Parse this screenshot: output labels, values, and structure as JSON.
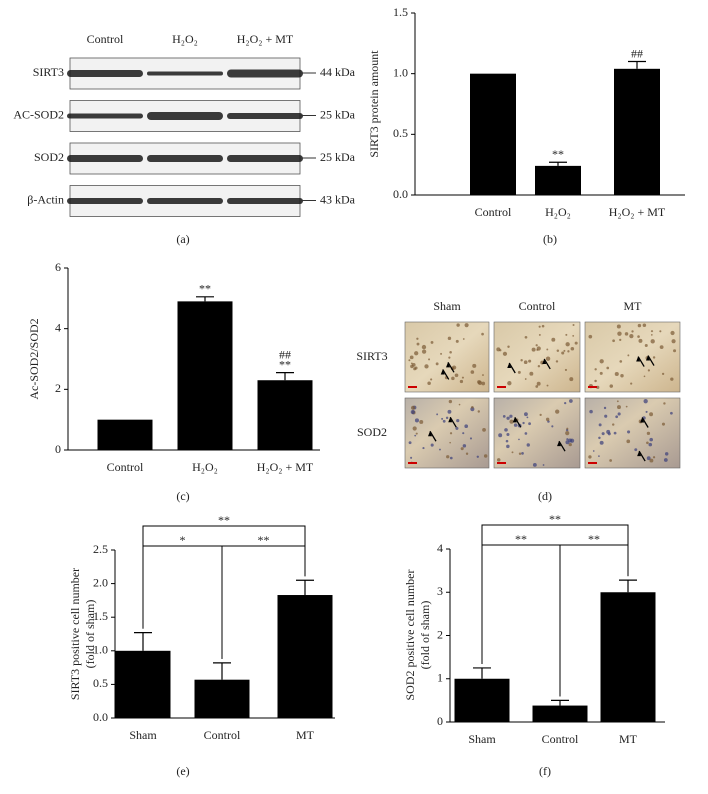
{
  "blot": {
    "panel_label": "(a)",
    "lanes": [
      "Control",
      "H₂O₂",
      "H₂O₂ + MT"
    ],
    "rows": [
      {
        "name": "SIRT3",
        "size": "44 kDa"
      },
      {
        "name": "AC-SOD2",
        "size": "25 kDa"
      },
      {
        "name": "SOD2",
        "size": "25 kDa"
      },
      {
        "name": "β-Actin",
        "size": "43 kDa"
      }
    ]
  },
  "histology": {
    "panel_label": "(d)",
    "columns": [
      "Sham",
      "Control",
      "MT"
    ],
    "rows": [
      "SIRT3",
      "SOD2"
    ]
  },
  "chart_data": [
    {
      "type": "bar",
      "panel_label": "(b)",
      "y_label": [
        "SIRT3 protein amount"
      ],
      "categories": [
        "Control",
        "H₂O₂",
        "H₂O₂ + MT"
      ],
      "values": [
        1.0,
        0.24,
        1.04
      ],
      "errors": [
        null,
        0.03,
        0.06
      ],
      "significance": [
        null,
        [
          "**"
        ],
        [
          "##"
        ]
      ],
      "color": "#000000",
      "ylim": [
        0,
        1.5
      ],
      "yticks": [
        {
          "value": 0,
          "label": "0.0"
        },
        0.5,
        {
          "value": 1,
          "label": "1.0"
        },
        1.5
      ]
    },
    {
      "type": "bar",
      "panel_label": "(c)",
      "y_label": [
        "Ac-SOD2/SOD2"
      ],
      "categories": [
        "Control",
        "H₂O₂",
        "H₂O₂ + MT"
      ],
      "values": [
        1.0,
        4.9,
        2.3
      ],
      "errors": [
        null,
        0.15,
        0.25
      ],
      "significance": [
        null,
        [
          "**"
        ],
        [
          "##",
          "**"
        ]
      ],
      "color": "#000000",
      "ylim": [
        0,
        6
      ],
      "yticks": [
        0,
        2,
        4,
        6
      ]
    },
    {
      "type": "bar",
      "panel_label": "(e)",
      "y_label": [
        "SIRT3 positive cell number",
        "(fold of sham)"
      ],
      "categories": [
        "Sham",
        "Control",
        "MT"
      ],
      "values": [
        1.0,
        0.57,
        1.83
      ],
      "errors": [
        0.27,
        0.25,
        0.22
      ],
      "comparisons": [
        {
          "groups": [
            "Sham",
            "Control"
          ],
          "label": "*"
        },
        {
          "groups": [
            "Control",
            "MT"
          ],
          "label": "**"
        },
        {
          "groups": [
            "Sham",
            "MT"
          ],
          "label": "**"
        }
      ],
      "color": "#000000",
      "ylim": [
        0,
        2.5
      ],
      "yticks": [
        {
          "value": 0,
          "label": "0.0"
        },
        0.5,
        {
          "value": 1,
          "label": "1.0"
        },
        1.5,
        {
          "value": 2,
          "label": "2.0"
        },
        2.5
      ]
    },
    {
      "type": "bar",
      "panel_label": "(f)",
      "y_label": [
        "SOD2 positive cell number",
        "(fold of sham)"
      ],
      "categories": [
        "Sham",
        "Control",
        "MT"
      ],
      "values": [
        1.0,
        0.38,
        3.0
      ],
      "errors": [
        0.25,
        0.12,
        0.28
      ],
      "comparisons": [
        {
          "groups": [
            "Sham",
            "Control"
          ],
          "label": "**"
        },
        {
          "groups": [
            "Control",
            "MT"
          ],
          "label": "**"
        },
        {
          "groups": [
            "Sham",
            "MT"
          ],
          "label": "**"
        }
      ],
      "color": "#000000",
      "ylim": [
        0,
        4
      ],
      "yticks": [
        0,
        1,
        2,
        3,
        4
      ]
    }
  ]
}
